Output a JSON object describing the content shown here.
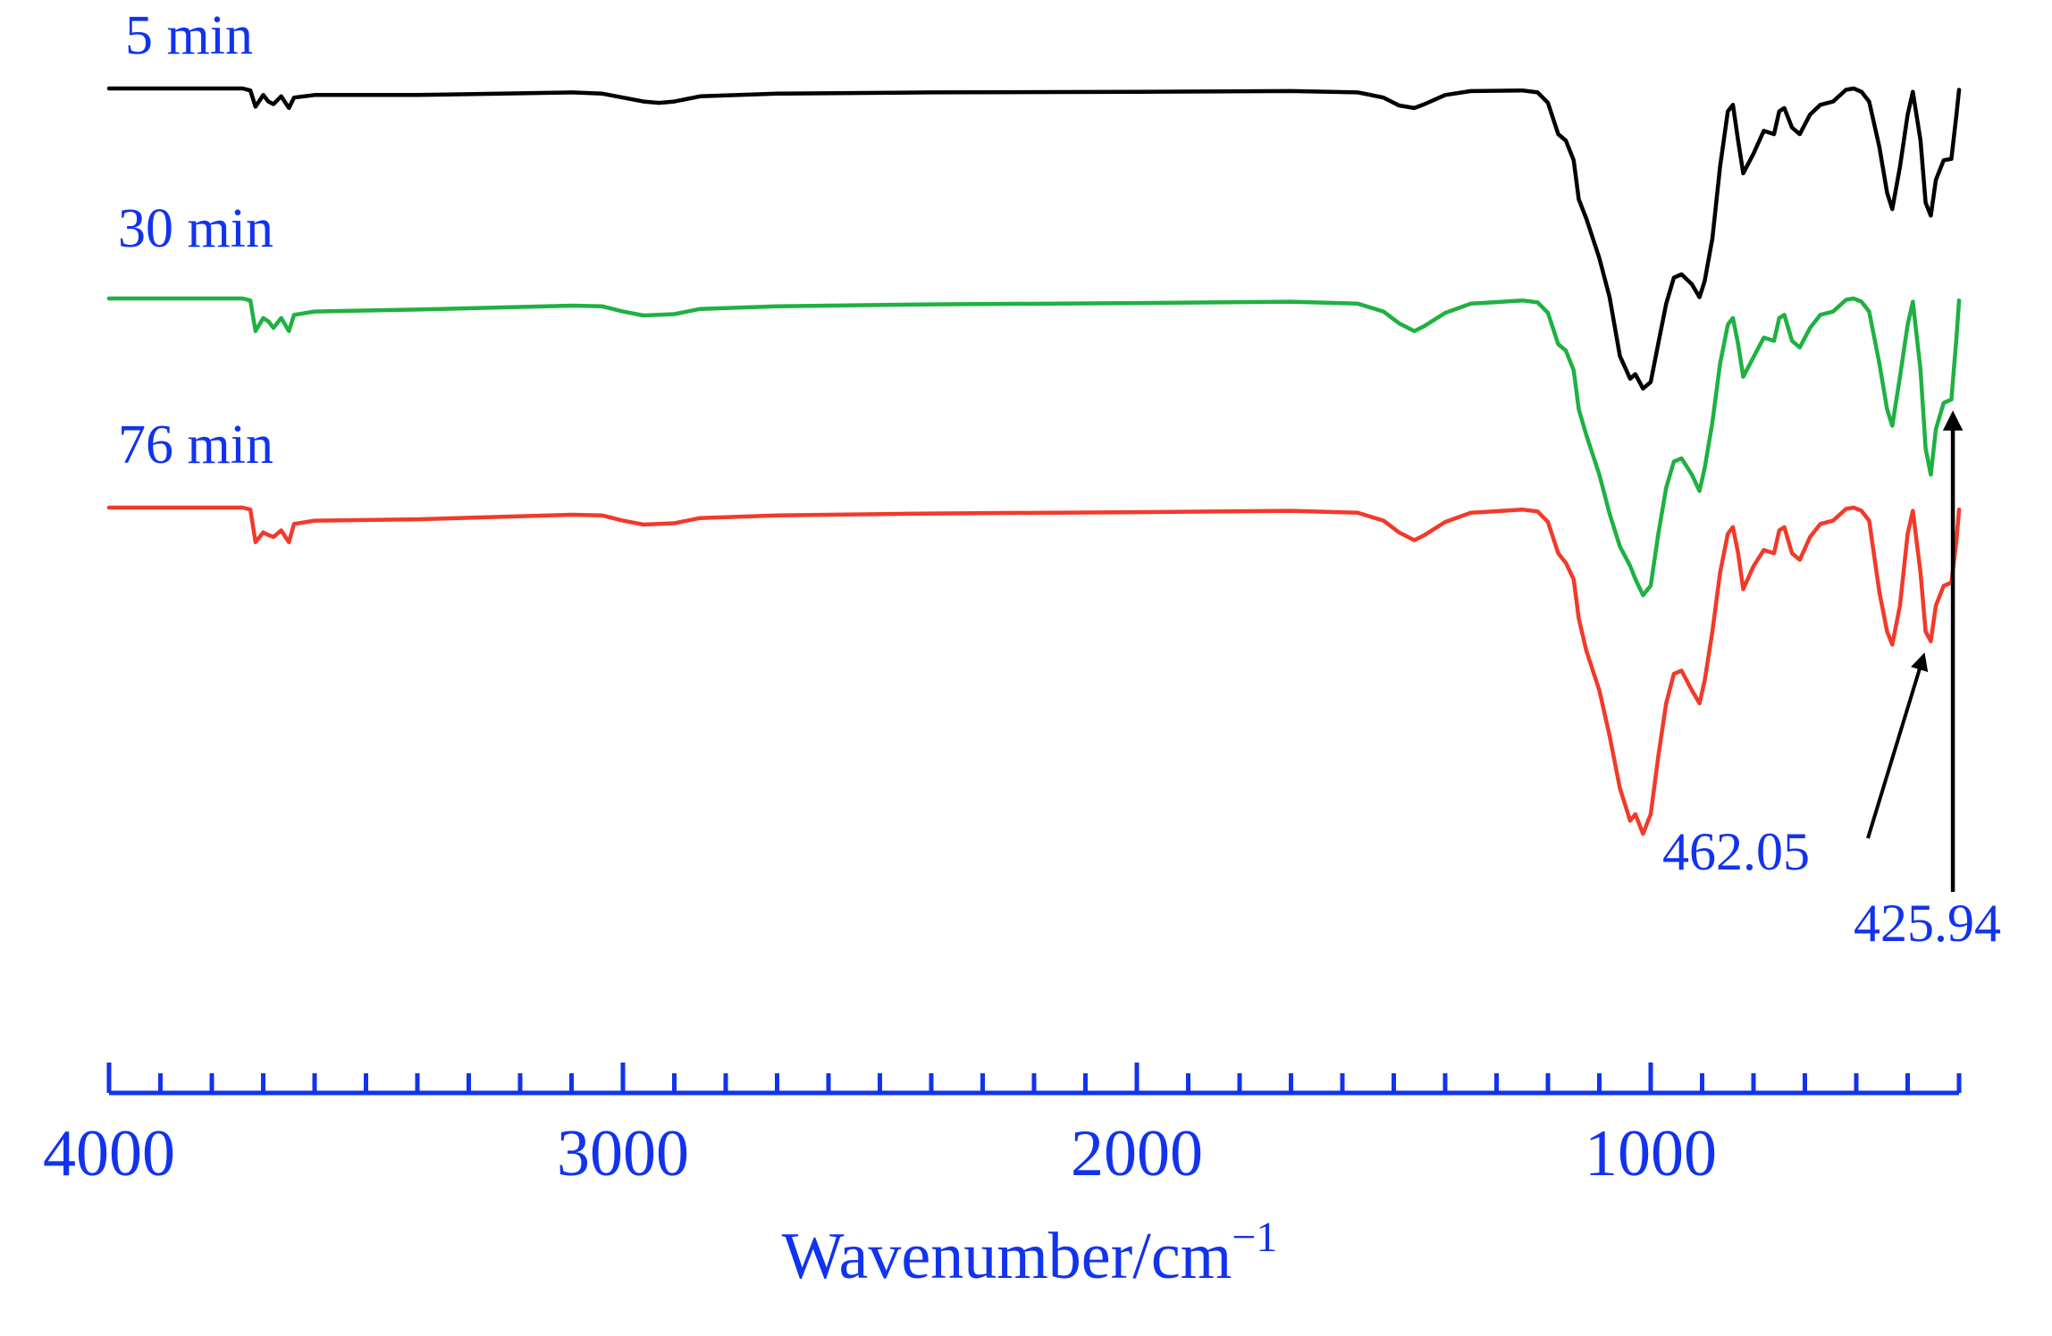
{
  "colors": {
    "axis": "#1133ee",
    "label": "#1133ee",
    "arrow": "#000000"
  },
  "chart_data": {
    "type": "line",
    "title": "",
    "xlabel": "Wavenumber/cm",
    "xlabel_superscript": "−1",
    "ylabel": "",
    "xlim": [
      4000,
      400
    ],
    "x_reversed": true,
    "y_offset_stacked": true,
    "yaxis_visible": false,
    "grid": false,
    "xticks": [
      4000,
      3000,
      2000,
      1000
    ],
    "xtick_labels": [
      "4000",
      "3000",
      "2000",
      "1000"
    ],
    "xminor_step": 100,
    "series": [
      {
        "name": "5 min",
        "color": "#000000",
        "offset": 0,
        "points": [
          [
            4000,
            0
          ],
          [
            3740,
            0
          ],
          [
            3725,
            -3
          ],
          [
            3715,
            -28
          ],
          [
            3700,
            -10
          ],
          [
            3690,
            -20
          ],
          [
            3680,
            -24
          ],
          [
            3665,
            -12
          ],
          [
            3650,
            -30
          ],
          [
            3640,
            -14
          ],
          [
            3600,
            -10
          ],
          [
            3400,
            -10
          ],
          [
            3100,
            -6
          ],
          [
            3040,
            -8
          ],
          [
            3000,
            -14
          ],
          [
            2960,
            -20
          ],
          [
            2930,
            -22
          ],
          [
            2900,
            -20
          ],
          [
            2850,
            -12
          ],
          [
            2700,
            -8
          ],
          [
            2400,
            -6
          ],
          [
            2000,
            -5
          ],
          [
            1700,
            -4
          ],
          [
            1570,
            -6
          ],
          [
            1520,
            -14
          ],
          [
            1490,
            -26
          ],
          [
            1460,
            -30
          ],
          [
            1440,
            -24
          ],
          [
            1400,
            -10
          ],
          [
            1350,
            -4
          ],
          [
            1250,
            -3
          ],
          [
            1220,
            -6
          ],
          [
            1200,
            -22
          ],
          [
            1180,
            -70
          ],
          [
            1165,
            -80
          ],
          [
            1150,
            -110
          ],
          [
            1140,
            -170
          ],
          [
            1125,
            -200
          ],
          [
            1100,
            -260
          ],
          [
            1080,
            -320
          ],
          [
            1060,
            -410
          ],
          [
            1040,
            -445
          ],
          [
            1030,
            -438
          ],
          [
            1015,
            -460
          ],
          [
            1000,
            -450
          ],
          [
            985,
            -390
          ],
          [
            970,
            -330
          ],
          [
            955,
            -290
          ],
          [
            940,
            -285
          ],
          [
            920,
            -300
          ],
          [
            905,
            -320
          ],
          [
            895,
            -295
          ],
          [
            880,
            -230
          ],
          [
            865,
            -120
          ],
          [
            850,
            -35
          ],
          [
            840,
            -25
          ],
          [
            830,
            -80
          ],
          [
            820,
            -130
          ],
          [
            800,
            -100
          ],
          [
            780,
            -65
          ],
          [
            760,
            -70
          ],
          [
            750,
            -35
          ],
          [
            740,
            -30
          ],
          [
            725,
            -60
          ],
          [
            710,
            -70
          ],
          [
            690,
            -40
          ],
          [
            670,
            -25
          ],
          [
            645,
            -20
          ],
          [
            620,
            -2
          ],
          [
            605,
            0
          ],
          [
            590,
            -5
          ],
          [
            575,
            -20
          ],
          [
            555,
            -90
          ],
          [
            540,
            -160
          ],
          [
            530,
            -185
          ],
          [
            515,
            -120
          ],
          [
            500,
            -40
          ],
          [
            490,
            -5
          ],
          [
            475,
            -80
          ],
          [
            465,
            -175
          ],
          [
            455,
            -195
          ],
          [
            445,
            -140
          ],
          [
            430,
            -110
          ],
          [
            415,
            -108
          ],
          [
            405,
            -40
          ],
          [
            400,
            -2
          ]
        ]
      },
      {
        "name": "30 min",
        "color": "#1fb141",
        "offset": 1,
        "points": [
          [
            4000,
            0
          ],
          [
            3740,
            0
          ],
          [
            3725,
            -3
          ],
          [
            3715,
            -50
          ],
          [
            3700,
            -30
          ],
          [
            3690,
            -35
          ],
          [
            3680,
            -45
          ],
          [
            3665,
            -30
          ],
          [
            3650,
            -50
          ],
          [
            3640,
            -25
          ],
          [
            3600,
            -20
          ],
          [
            3400,
            -17
          ],
          [
            3100,
            -11
          ],
          [
            3040,
            -12
          ],
          [
            3000,
            -20
          ],
          [
            2960,
            -26
          ],
          [
            2930,
            -25
          ],
          [
            2900,
            -24
          ],
          [
            2850,
            -16
          ],
          [
            2700,
            -12
          ],
          [
            2400,
            -9
          ],
          [
            2000,
            -7
          ],
          [
            1700,
            -5
          ],
          [
            1570,
            -8
          ],
          [
            1520,
            -20
          ],
          [
            1490,
            -38
          ],
          [
            1460,
            -50
          ],
          [
            1440,
            -42
          ],
          [
            1400,
            -22
          ],
          [
            1350,
            -8
          ],
          [
            1250,
            -3
          ],
          [
            1220,
            -6
          ],
          [
            1200,
            -22
          ],
          [
            1180,
            -70
          ],
          [
            1165,
            -80
          ],
          [
            1150,
            -110
          ],
          [
            1140,
            -170
          ],
          [
            1125,
            -210
          ],
          [
            1100,
            -270
          ],
          [
            1080,
            -330
          ],
          [
            1060,
            -380
          ],
          [
            1040,
            -410
          ],
          [
            1030,
            -430
          ],
          [
            1015,
            -455
          ],
          [
            1000,
            -440
          ],
          [
            985,
            -360
          ],
          [
            970,
            -290
          ],
          [
            955,
            -250
          ],
          [
            940,
            -245
          ],
          [
            920,
            -270
          ],
          [
            905,
            -295
          ],
          [
            895,
            -260
          ],
          [
            880,
            -190
          ],
          [
            865,
            -100
          ],
          [
            850,
            -40
          ],
          [
            840,
            -30
          ],
          [
            830,
            -70
          ],
          [
            820,
            -120
          ],
          [
            800,
            -90
          ],
          [
            780,
            -60
          ],
          [
            760,
            -65
          ],
          [
            750,
            -30
          ],
          [
            740,
            -25
          ],
          [
            725,
            -65
          ],
          [
            710,
            -75
          ],
          [
            690,
            -45
          ],
          [
            670,
            -25
          ],
          [
            645,
            -20
          ],
          [
            620,
            -2
          ],
          [
            605,
            0
          ],
          [
            590,
            -5
          ],
          [
            575,
            -20
          ],
          [
            555,
            -100
          ],
          [
            540,
            -170
          ],
          [
            530,
            -195
          ],
          [
            515,
            -120
          ],
          [
            500,
            -40
          ],
          [
            490,
            -5
          ],
          [
            475,
            -110
          ],
          [
            465,
            -230
          ],
          [
            455,
            -270
          ],
          [
            445,
            -200
          ],
          [
            430,
            -160
          ],
          [
            415,
            -155
          ],
          [
            405,
            -60
          ],
          [
            400,
            -3
          ]
        ]
      },
      {
        "name": "76 min",
        "color": "#f23a2a",
        "offset": 2,
        "points": [
          [
            4000,
            0
          ],
          [
            3740,
            0
          ],
          [
            3725,
            -3
          ],
          [
            3715,
            -53
          ],
          [
            3700,
            -38
          ],
          [
            3690,
            -42
          ],
          [
            3680,
            -45
          ],
          [
            3665,
            -35
          ],
          [
            3650,
            -53
          ],
          [
            3640,
            -25
          ],
          [
            3600,
            -20
          ],
          [
            3400,
            -18
          ],
          [
            3100,
            -11
          ],
          [
            3040,
            -12
          ],
          [
            3000,
            -20
          ],
          [
            2960,
            -26
          ],
          [
            2930,
            -25
          ],
          [
            2900,
            -24
          ],
          [
            2850,
            -16
          ],
          [
            2700,
            -12
          ],
          [
            2400,
            -9
          ],
          [
            2000,
            -7
          ],
          [
            1700,
            -5
          ],
          [
            1570,
            -8
          ],
          [
            1520,
            -20
          ],
          [
            1490,
            -38
          ],
          [
            1460,
            -50
          ],
          [
            1440,
            -42
          ],
          [
            1400,
            -22
          ],
          [
            1350,
            -8
          ],
          [
            1250,
            -3
          ],
          [
            1220,
            -6
          ],
          [
            1200,
            -22
          ],
          [
            1180,
            -70
          ],
          [
            1165,
            -85
          ],
          [
            1150,
            -110
          ],
          [
            1140,
            -170
          ],
          [
            1125,
            -220
          ],
          [
            1100,
            -280
          ],
          [
            1080,
            -350
          ],
          [
            1060,
            -430
          ],
          [
            1040,
            -480
          ],
          [
            1030,
            -470
          ],
          [
            1015,
            -500
          ],
          [
            1000,
            -470
          ],
          [
            985,
            -380
          ],
          [
            970,
            -300
          ],
          [
            955,
            -255
          ],
          [
            940,
            -250
          ],
          [
            920,
            -280
          ],
          [
            905,
            -300
          ],
          [
            895,
            -265
          ],
          [
            880,
            -190
          ],
          [
            865,
            -100
          ],
          [
            850,
            -40
          ],
          [
            840,
            -30
          ],
          [
            830,
            -70
          ],
          [
            820,
            -125
          ],
          [
            800,
            -90
          ],
          [
            780,
            -65
          ],
          [
            760,
            -70
          ],
          [
            750,
            -35
          ],
          [
            740,
            -30
          ],
          [
            725,
            -70
          ],
          [
            710,
            -80
          ],
          [
            690,
            -45
          ],
          [
            670,
            -25
          ],
          [
            645,
            -20
          ],
          [
            620,
            -2
          ],
          [
            605,
            0
          ],
          [
            590,
            -5
          ],
          [
            575,
            -20
          ],
          [
            555,
            -130
          ],
          [
            540,
            -190
          ],
          [
            530,
            -210
          ],
          [
            515,
            -150
          ],
          [
            500,
            -40
          ],
          [
            490,
            -5
          ],
          [
            475,
            -100
          ],
          [
            465,
            -190
          ],
          [
            455,
            -205
          ],
          [
            445,
            -150
          ],
          [
            430,
            -120
          ],
          [
            415,
            -115
          ],
          [
            405,
            -50
          ],
          [
            400,
            -3
          ]
        ]
      }
    ],
    "annotations": [
      {
        "text": "462.05",
        "target_series": "76 min",
        "target_x": 462.05,
        "arrow": "diagonal"
      },
      {
        "text": "425.94",
        "target_series": "30 min",
        "target_x": 425.94,
        "arrow": "vertical"
      }
    ]
  }
}
